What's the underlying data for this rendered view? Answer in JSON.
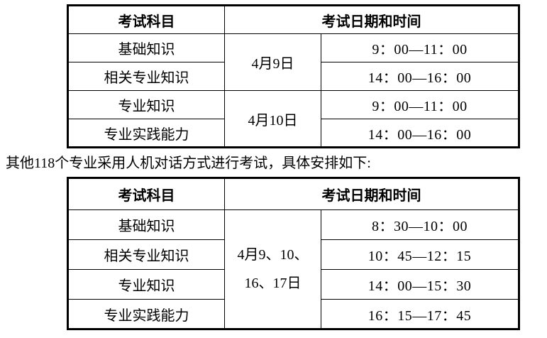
{
  "note": {
    "text": "其他118个专业采用人机对话方式进行考试，具体安排如下:"
  },
  "written_exam_table": {
    "header": {
      "subject": "考试科目",
      "datetime": "考试日期和时间"
    },
    "dates": [
      {
        "label": "4月9日"
      },
      {
        "label": "4月10日"
      }
    ],
    "rows": [
      {
        "subject": "基础知识",
        "time": "9：00—11：00"
      },
      {
        "subject": "相关专业知识",
        "time": "14：00—16：00"
      },
      {
        "subject": "专业知识",
        "time": "9：00—11：00"
      },
      {
        "subject": "专业实践能力",
        "time": "14：00—16：00"
      }
    ]
  },
  "computer_exam_table": {
    "header": {
      "subject": "考试科目",
      "datetime": "考试日期和时间"
    },
    "date_lines": [
      "4月9、10、",
      "16、17日"
    ],
    "rows": [
      {
        "subject": "基础知识",
        "time": "8：30—10：00"
      },
      {
        "subject": "相关专业知识",
        "time": "10：45—12：15"
      },
      {
        "subject": "专业知识",
        "time": "14：00—15：30"
      },
      {
        "subject": "专业实践能力",
        "time": "16：15—17：45"
      }
    ]
  }
}
